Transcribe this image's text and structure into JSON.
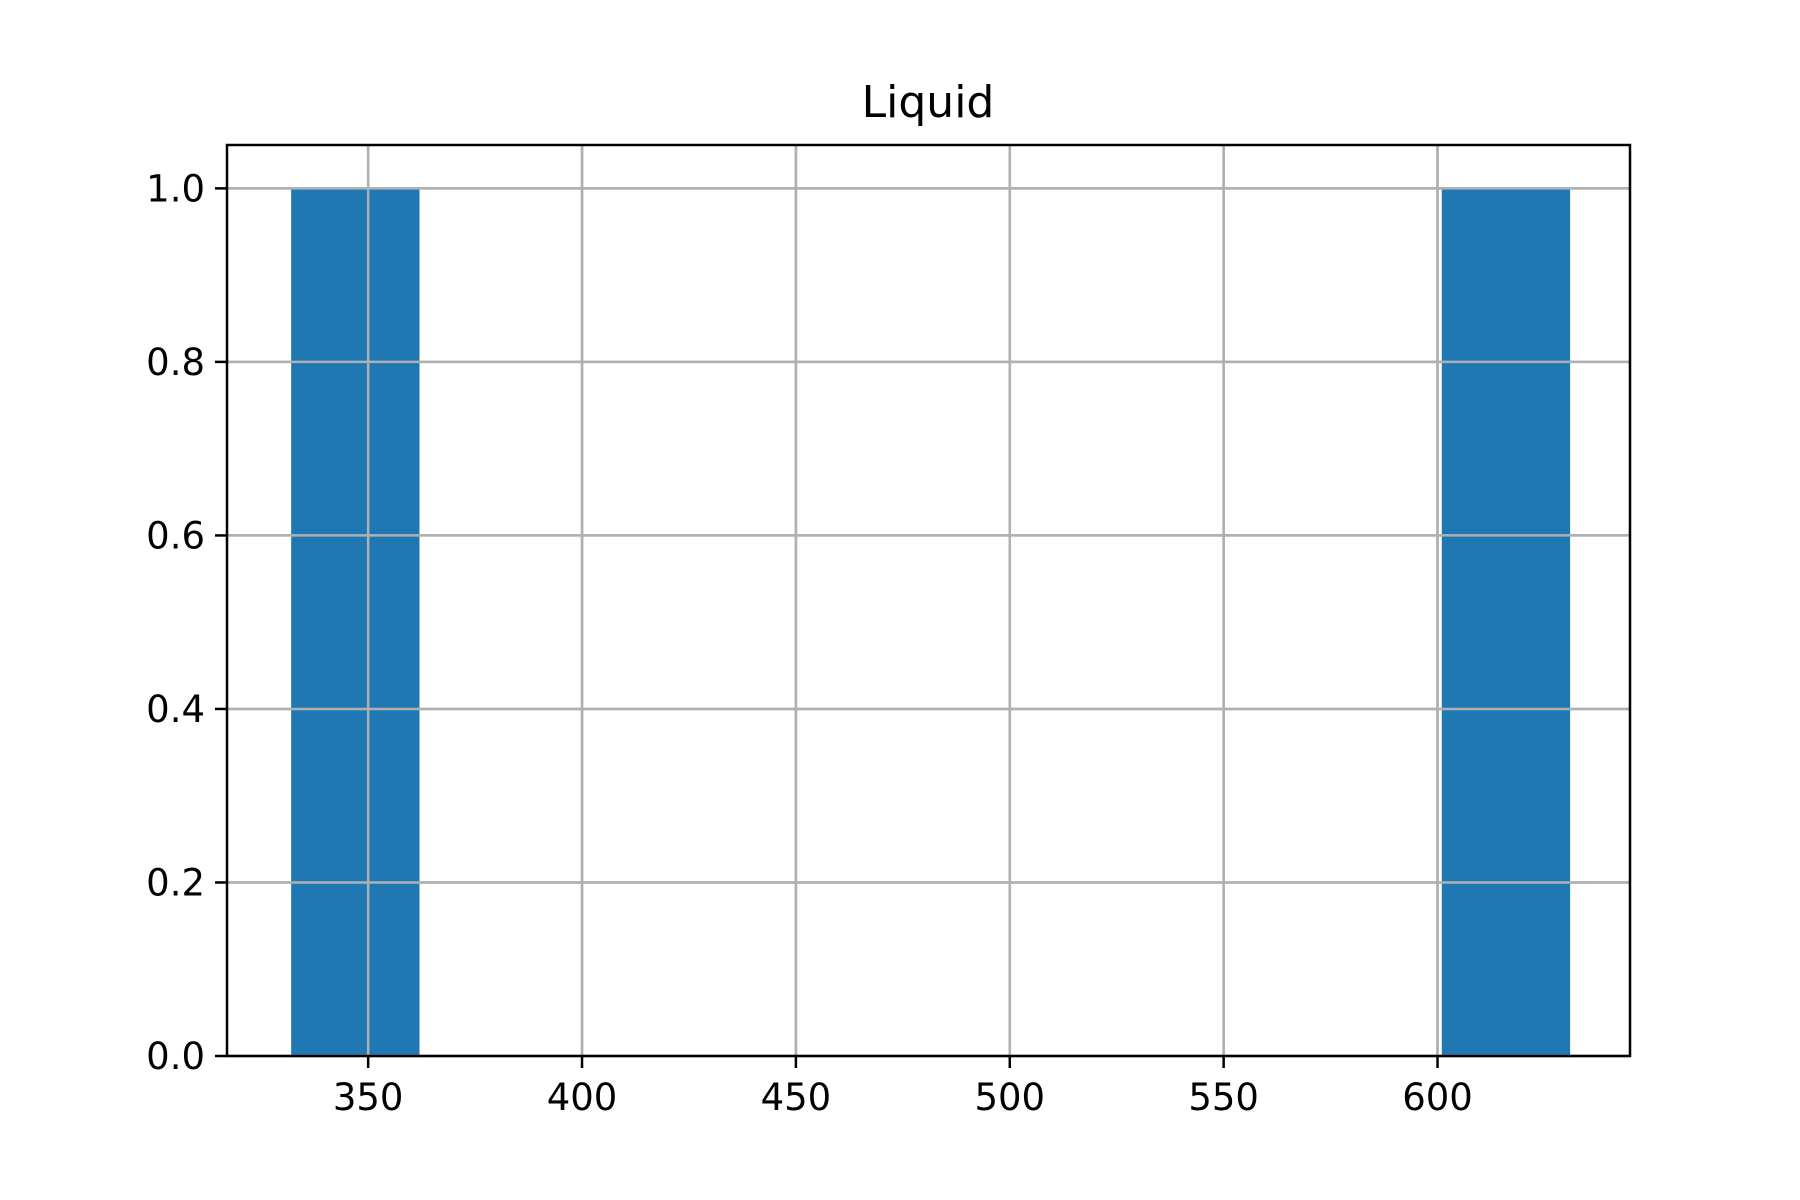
{
  "chart_data": {
    "type": "bar",
    "title": "Liquid",
    "xlabel": "",
    "ylabel": "",
    "bins": [
      {
        "x0": 332,
        "x1": 362,
        "count": 1.0
      },
      {
        "x0": 362,
        "x1": 392,
        "count": 0.0
      },
      {
        "x0": 392,
        "x1": 422,
        "count": 0.0
      },
      {
        "x0": 422,
        "x1": 452,
        "count": 0.0
      },
      {
        "x0": 452,
        "x1": 482,
        "count": 0.0
      },
      {
        "x0": 482,
        "x1": 512,
        "count": 0.0
      },
      {
        "x0": 512,
        "x1": 541,
        "count": 0.0
      },
      {
        "x0": 541,
        "x1": 571,
        "count": 0.0
      },
      {
        "x0": 571,
        "x1": 601,
        "count": 0.0
      },
      {
        "x0": 601,
        "x1": 631,
        "count": 1.0
      }
    ],
    "xlim": [
      317,
      645
    ],
    "ylim": [
      0,
      1.05
    ],
    "xticks": [
      350,
      400,
      450,
      500,
      550,
      600
    ],
    "xtick_labels": [
      "350",
      "400",
      "450",
      "500",
      "550",
      "600"
    ],
    "yticks": [
      0.0,
      0.2,
      0.4,
      0.6,
      0.8,
      1.0
    ],
    "ytick_labels": [
      "0.0",
      "0.2",
      "0.4",
      "0.6",
      "0.8",
      "1.0"
    ],
    "grid": true,
    "bar_color": "#1f77b4"
  }
}
